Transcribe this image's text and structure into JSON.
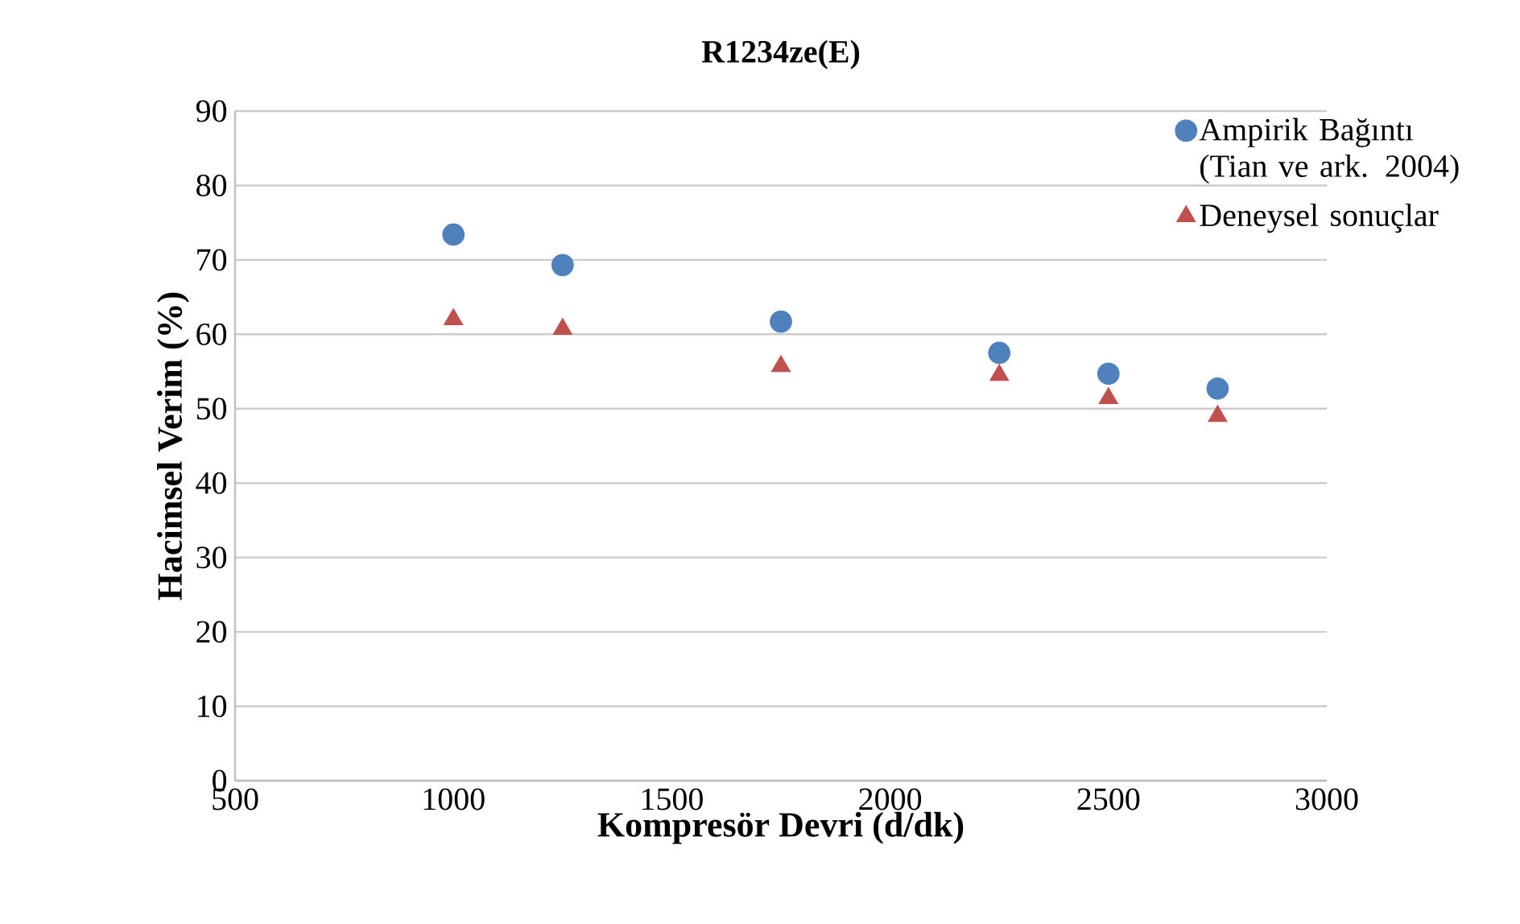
{
  "chart_data": {
    "type": "scatter",
    "title": "R1234ze(E)",
    "xlabel": "Kompresör Devri (d/dk)",
    "ylabel": "Hacimsel Verim (%)",
    "x": [
      1000,
      1250,
      1750,
      2250,
      2500,
      2750
    ],
    "series": [
      {
        "name": "Ampirik Bağıntı (Tian ve ark. 2004)",
        "color": "#4f81bd",
        "marker": "circle",
        "values": [
          73.4,
          69.3,
          61.7,
          57.5,
          54.7,
          52.7
        ]
      },
      {
        "name": "Deneysel sonuçlar",
        "color": "#c0504d",
        "marker": "triangle",
        "values": [
          62,
          60.7,
          55.7,
          54.5,
          51.4,
          49.0
        ]
      }
    ],
    "xlim": [
      500,
      3000
    ],
    "xticks": [
      500,
      1000,
      1500,
      2000,
      2500,
      3000
    ],
    "ylim": [
      0,
      90
    ],
    "yticks": [
      0,
      10,
      20,
      30,
      40,
      50,
      60,
      70,
      80,
      90
    ],
    "grid": "y",
    "legend": "top right"
  }
}
